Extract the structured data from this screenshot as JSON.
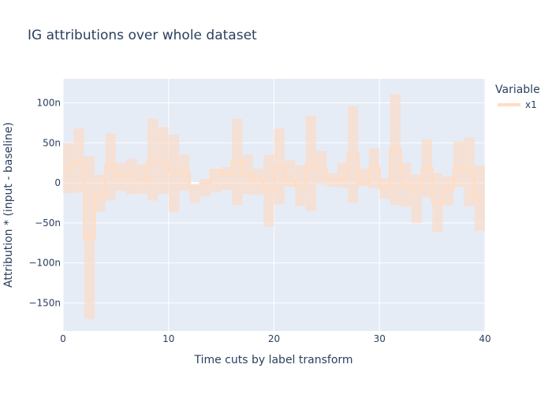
{
  "chart_data": {
    "type": "line",
    "title": "IG attributions over whole dataset",
    "xlabel": "Time cuts by label transform",
    "ylabel": "Attribution * (input - baseline)",
    "xlim": [
      0,
      40
    ],
    "ylim": [
      -185,
      130
    ],
    "x_ticks": [
      0,
      10,
      20,
      30,
      40
    ],
    "x_tick_labels": [
      "0",
      "10",
      "20",
      "30",
      "40"
    ],
    "y_ticks": [
      100,
      50,
      0,
      -50,
      -100,
      -150
    ],
    "y_tick_labels": [
      "100n",
      "50n",
      "0",
      "−50n",
      "−100n",
      "−150n"
    ],
    "grid": true,
    "legend_position": "top-right",
    "legend_title": "Variable",
    "line_color": "#ffddc4",
    "band_color": "#f9dccb",
    "plot_bg": "#e5ecf6",
    "series": [
      {
        "name": "x1",
        "x_step_edges": [
          0,
          1,
          2,
          3,
          4,
          5,
          6,
          7,
          8,
          9,
          10,
          11,
          12,
          13,
          14,
          15,
          16,
          17,
          18,
          19,
          20,
          21,
          22,
          23,
          24,
          25,
          26,
          27,
          28,
          29,
          30,
          31,
          32,
          33,
          34,
          35,
          36,
          37,
          38,
          39,
          40
        ],
        "values": [
          19,
          28,
          -69,
          -14,
          21,
          9,
          9,
          4,
          28,
          28,
          14,
          13,
          -5,
          0,
          16,
          10,
          27,
          9,
          3,
          -11,
          21,
          2,
          -3,
          24,
          17,
          4,
          5,
          36,
          0,
          18,
          -6,
          42,
          -2,
          -11,
          18,
          -25,
          -8,
          19,
          14,
          -19
        ],
        "upper": [
          50,
          68,
          33,
          10,
          62,
          25,
          30,
          23,
          80,
          70,
          60,
          35,
          -3,
          5,
          16,
          20,
          80,
          35,
          18,
          35,
          68,
          28,
          22,
          84,
          40,
          12,
          25,
          96,
          18,
          43,
          6,
          111,
          25,
          10,
          54,
          12,
          8,
          52,
          57,
          22
        ],
        "lower": [
          -13,
          -12,
          -170,
          -36,
          -22,
          -10,
          -14,
          -14,
          -22,
          -14,
          -36,
          -10,
          -25,
          -17,
          -12,
          -9,
          -28,
          -14,
          -15,
          -55,
          -27,
          -5,
          -29,
          -35,
          -2,
          -5,
          -6,
          -25,
          -4,
          -7,
          -20,
          -28,
          -30,
          -50,
          -18,
          -61,
          -28,
          -5,
          -29,
          -60
        ]
      }
    ]
  }
}
